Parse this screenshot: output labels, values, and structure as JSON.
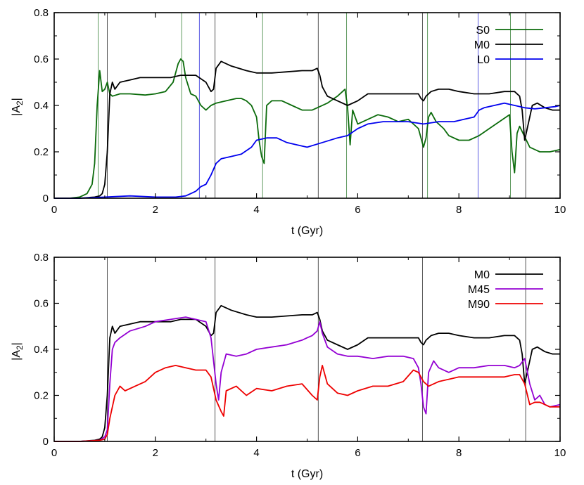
{
  "colors": {
    "S0": "#0b6b0b",
    "M0": "#000000",
    "L0": "#0000ee",
    "M45": "#9400d3",
    "M90": "#ee0000",
    "vline_green": "#4f8f4f",
    "vline_black": "#444444",
    "vline_blue": "#4a4ae0"
  },
  "chart_data": [
    {
      "type": "line",
      "xlabel": "t (Gyr)",
      "ylabel_main": "|A",
      "ylabel_sub": "2",
      "ylabel_end": "|",
      "xlim": [
        0,
        10
      ],
      "ylim": [
        0,
        0.8
      ],
      "xticks": [
        0,
        2,
        4,
        6,
        8,
        10
      ],
      "xtick_labels": [
        "0",
        "2",
        "4",
        "6",
        "8",
        "10"
      ],
      "yticks": [
        0,
        0.2,
        0.4,
        0.6,
        0.8
      ],
      "ytick_labels": [
        "0",
        "0.2",
        "0.4",
        "0.6",
        "0.8"
      ],
      "legend_position": "top-right",
      "vlines": [
        {
          "x": 0.87,
          "series": "S0"
        },
        {
          "x": 1.05,
          "series": "M0"
        },
        {
          "x": 2.52,
          "series": "S0"
        },
        {
          "x": 2.87,
          "series": "L0"
        },
        {
          "x": 3.18,
          "series": "M0"
        },
        {
          "x": 4.12,
          "series": "S0"
        },
        {
          "x": 5.22,
          "series": "M0"
        },
        {
          "x": 5.78,
          "series": "S0"
        },
        {
          "x": 7.28,
          "series": "M0"
        },
        {
          "x": 7.38,
          "series": "S0"
        },
        {
          "x": 8.38,
          "series": "L0"
        },
        {
          "x": 9.02,
          "series": "S0"
        },
        {
          "x": 9.32,
          "series": "M0"
        }
      ],
      "series": [
        {
          "name": "S0",
          "x": [
            0,
            0.3,
            0.5,
            0.65,
            0.75,
            0.8,
            0.85,
            0.9,
            0.95,
            1.0,
            1.05,
            1.1,
            1.15,
            1.3,
            1.5,
            1.8,
            2.0,
            2.2,
            2.35,
            2.45,
            2.5,
            2.55,
            2.6,
            2.7,
            2.8,
            2.9,
            3.0,
            3.1,
            3.2,
            3.4,
            3.6,
            3.7,
            3.8,
            3.9,
            4.0,
            4.05,
            4.1,
            4.15,
            4.2,
            4.3,
            4.5,
            4.7,
            4.9,
            5.1,
            5.2,
            5.4,
            5.6,
            5.75,
            5.8,
            5.85,
            5.9,
            6.0,
            6.2,
            6.4,
            6.6,
            6.8,
            7.0,
            7.2,
            7.3,
            7.35,
            7.4,
            7.45,
            7.55,
            7.7,
            7.8,
            8.0,
            8.2,
            8.4,
            8.6,
            8.8,
            9.0,
            9.05,
            9.1,
            9.15,
            9.2,
            9.4,
            9.6,
            9.8,
            10.0
          ],
          "values": [
            0.0,
            0.0,
            0.005,
            0.02,
            0.06,
            0.15,
            0.4,
            0.55,
            0.46,
            0.47,
            0.5,
            0.45,
            0.44,
            0.45,
            0.45,
            0.445,
            0.45,
            0.46,
            0.5,
            0.58,
            0.6,
            0.59,
            0.52,
            0.45,
            0.44,
            0.4,
            0.38,
            0.4,
            0.41,
            0.42,
            0.43,
            0.43,
            0.42,
            0.4,
            0.35,
            0.25,
            0.18,
            0.15,
            0.4,
            0.42,
            0.42,
            0.4,
            0.38,
            0.38,
            0.39,
            0.41,
            0.44,
            0.47,
            0.39,
            0.23,
            0.38,
            0.32,
            0.34,
            0.36,
            0.35,
            0.33,
            0.34,
            0.3,
            0.22,
            0.26,
            0.35,
            0.37,
            0.33,
            0.3,
            0.27,
            0.25,
            0.25,
            0.27,
            0.3,
            0.33,
            0.36,
            0.2,
            0.11,
            0.28,
            0.31,
            0.22,
            0.2,
            0.2,
            0.21
          ]
        },
        {
          "name": "M0",
          "x": [
            0,
            0.5,
            0.8,
            0.9,
            0.95,
            1.0,
            1.05,
            1.1,
            1.15,
            1.2,
            1.3,
            1.5,
            1.7,
            2.0,
            2.3,
            2.5,
            2.8,
            3.0,
            3.1,
            3.15,
            3.2,
            3.3,
            3.5,
            3.8,
            4.0,
            4.3,
            4.6,
            4.9,
            5.1,
            5.2,
            5.25,
            5.3,
            5.4,
            5.6,
            5.8,
            6.0,
            6.2,
            6.5,
            6.8,
            7.0,
            7.2,
            7.25,
            7.3,
            7.35,
            7.45,
            7.6,
            7.8,
            8.0,
            8.3,
            8.6,
            8.9,
            9.1,
            9.2,
            9.25,
            9.3,
            9.35,
            9.45,
            9.55,
            9.7,
            9.85,
            10.0
          ],
          "values": [
            0.0,
            0.0,
            0.005,
            0.01,
            0.02,
            0.06,
            0.2,
            0.45,
            0.5,
            0.47,
            0.5,
            0.51,
            0.52,
            0.52,
            0.52,
            0.53,
            0.53,
            0.5,
            0.46,
            0.47,
            0.56,
            0.59,
            0.57,
            0.55,
            0.54,
            0.54,
            0.545,
            0.55,
            0.55,
            0.56,
            0.53,
            0.48,
            0.44,
            0.42,
            0.4,
            0.42,
            0.45,
            0.45,
            0.45,
            0.45,
            0.45,
            0.43,
            0.42,
            0.44,
            0.46,
            0.47,
            0.47,
            0.46,
            0.45,
            0.45,
            0.46,
            0.46,
            0.44,
            0.38,
            0.25,
            0.3,
            0.4,
            0.41,
            0.39,
            0.38,
            0.38
          ]
        },
        {
          "name": "L0",
          "x": [
            0,
            0.5,
            1.0,
            1.5,
            2.0,
            2.4,
            2.6,
            2.7,
            2.8,
            2.9,
            3.0,
            3.1,
            3.2,
            3.3,
            3.5,
            3.7,
            3.9,
            4.0,
            4.2,
            4.4,
            4.6,
            4.8,
            5.0,
            5.3,
            5.6,
            5.8,
            6.0,
            6.2,
            6.5,
            6.8,
            7.0,
            7.3,
            7.6,
            7.9,
            8.1,
            8.3,
            8.4,
            8.5,
            8.7,
            8.9,
            9.1,
            9.3,
            9.5,
            9.7,
            9.9,
            10.0
          ],
          "values": [
            0.0,
            0.0,
            0.005,
            0.01,
            0.005,
            0.005,
            0.01,
            0.02,
            0.03,
            0.05,
            0.06,
            0.1,
            0.15,
            0.17,
            0.18,
            0.19,
            0.22,
            0.25,
            0.26,
            0.26,
            0.24,
            0.23,
            0.22,
            0.24,
            0.26,
            0.27,
            0.3,
            0.32,
            0.33,
            0.33,
            0.33,
            0.32,
            0.33,
            0.33,
            0.34,
            0.35,
            0.38,
            0.39,
            0.4,
            0.41,
            0.4,
            0.39,
            0.385,
            0.39,
            0.395,
            0.4
          ]
        }
      ]
    },
    {
      "type": "line",
      "xlabel": "t (Gyr)",
      "ylabel_main": "|A",
      "ylabel_sub": "2",
      "ylabel_end": "|",
      "xlim": [
        0,
        10
      ],
      "ylim": [
        0,
        0.8
      ],
      "xticks": [
        0,
        2,
        4,
        6,
        8,
        10
      ],
      "xtick_labels": [
        "0",
        "2",
        "4",
        "6",
        "8",
        "10"
      ],
      "yticks": [
        0,
        0.2,
        0.4,
        0.6,
        0.8
      ],
      "ytick_labels": [
        "0",
        "0.2",
        "0.4",
        "0.6",
        "0.8"
      ],
      "legend_position": "top-right",
      "vlines": [
        {
          "x": 1.05,
          "series": "M0"
        },
        {
          "x": 3.18,
          "series": "M0"
        },
        {
          "x": 5.22,
          "series": "M0"
        },
        {
          "x": 7.28,
          "series": "M0"
        },
        {
          "x": 9.32,
          "series": "M0"
        }
      ],
      "series": [
        {
          "name": "M0",
          "x": [
            0,
            0.5,
            0.8,
            0.9,
            0.95,
            1.0,
            1.05,
            1.1,
            1.15,
            1.2,
            1.3,
            1.5,
            1.7,
            2.0,
            2.3,
            2.5,
            2.8,
            3.0,
            3.1,
            3.15,
            3.2,
            3.3,
            3.5,
            3.8,
            4.0,
            4.3,
            4.6,
            4.9,
            5.1,
            5.2,
            5.25,
            5.3,
            5.4,
            5.6,
            5.8,
            6.0,
            6.2,
            6.5,
            6.8,
            7.0,
            7.2,
            7.25,
            7.3,
            7.35,
            7.45,
            7.6,
            7.8,
            8.0,
            8.3,
            8.6,
            8.9,
            9.1,
            9.2,
            9.25,
            9.3,
            9.35,
            9.45,
            9.55,
            9.7,
            9.85,
            10.0
          ],
          "values": [
            0.0,
            0.0,
            0.005,
            0.01,
            0.02,
            0.06,
            0.2,
            0.45,
            0.5,
            0.47,
            0.5,
            0.51,
            0.52,
            0.52,
            0.52,
            0.53,
            0.53,
            0.5,
            0.46,
            0.47,
            0.56,
            0.59,
            0.57,
            0.55,
            0.54,
            0.54,
            0.545,
            0.55,
            0.55,
            0.56,
            0.53,
            0.48,
            0.44,
            0.42,
            0.4,
            0.42,
            0.45,
            0.45,
            0.45,
            0.45,
            0.45,
            0.43,
            0.42,
            0.44,
            0.46,
            0.47,
            0.47,
            0.46,
            0.45,
            0.45,
            0.46,
            0.46,
            0.44,
            0.38,
            0.25,
            0.3,
            0.4,
            0.41,
            0.39,
            0.38,
            0.38
          ]
        },
        {
          "name": "M45",
          "x": [
            0,
            0.5,
            0.9,
            1.0,
            1.05,
            1.1,
            1.15,
            1.2,
            1.3,
            1.5,
            1.8,
            2.0,
            2.3,
            2.6,
            2.8,
            3.0,
            3.1,
            3.2,
            3.25,
            3.3,
            3.4,
            3.6,
            3.8,
            4.0,
            4.3,
            4.6,
            4.9,
            5.0,
            5.1,
            5.2,
            5.25,
            5.3,
            5.4,
            5.6,
            5.8,
            6.0,
            6.3,
            6.6,
            6.9,
            7.1,
            7.2,
            7.25,
            7.3,
            7.35,
            7.4,
            7.5,
            7.6,
            7.8,
            8.0,
            8.3,
            8.6,
            8.9,
            9.1,
            9.2,
            9.3,
            9.4,
            9.5,
            9.6,
            9.7,
            9.8,
            10.0
          ],
          "values": [
            0.0,
            0.0,
            0.005,
            0.02,
            0.05,
            0.25,
            0.4,
            0.43,
            0.45,
            0.48,
            0.5,
            0.52,
            0.53,
            0.54,
            0.53,
            0.52,
            0.45,
            0.25,
            0.18,
            0.3,
            0.38,
            0.37,
            0.38,
            0.4,
            0.41,
            0.42,
            0.44,
            0.45,
            0.46,
            0.48,
            0.52,
            0.47,
            0.41,
            0.38,
            0.37,
            0.37,
            0.36,
            0.37,
            0.37,
            0.36,
            0.32,
            0.25,
            0.15,
            0.12,
            0.3,
            0.35,
            0.32,
            0.3,
            0.32,
            0.32,
            0.33,
            0.33,
            0.32,
            0.33,
            0.36,
            0.25,
            0.18,
            0.2,
            0.16,
            0.15,
            0.16
          ]
        },
        {
          "name": "M90",
          "x": [
            0,
            0.5,
            0.9,
            1.0,
            1.05,
            1.1,
            1.2,
            1.3,
            1.4,
            1.6,
            1.8,
            2.0,
            2.2,
            2.4,
            2.6,
            2.8,
            3.0,
            3.1,
            3.2,
            3.3,
            3.35,
            3.4,
            3.6,
            3.8,
            4.0,
            4.3,
            4.6,
            4.9,
            5.1,
            5.2,
            5.25,
            5.3,
            5.4,
            5.6,
            5.8,
            6.0,
            6.3,
            6.6,
            6.9,
            7.1,
            7.2,
            7.3,
            7.4,
            7.6,
            7.8,
            8.0,
            8.3,
            8.6,
            8.9,
            9.1,
            9.2,
            9.3,
            9.4,
            9.5,
            9.6,
            9.7,
            9.8,
            10.0
          ],
          "values": [
            0.0,
            0.0,
            0.005,
            0.01,
            0.03,
            0.1,
            0.2,
            0.24,
            0.22,
            0.24,
            0.26,
            0.3,
            0.32,
            0.33,
            0.32,
            0.31,
            0.31,
            0.28,
            0.18,
            0.13,
            0.11,
            0.22,
            0.24,
            0.2,
            0.23,
            0.22,
            0.24,
            0.25,
            0.2,
            0.18,
            0.28,
            0.33,
            0.25,
            0.21,
            0.2,
            0.22,
            0.24,
            0.24,
            0.26,
            0.31,
            0.3,
            0.26,
            0.24,
            0.26,
            0.27,
            0.28,
            0.28,
            0.28,
            0.28,
            0.29,
            0.29,
            0.25,
            0.16,
            0.17,
            0.17,
            0.16,
            0.15,
            0.15
          ]
        }
      ]
    }
  ]
}
